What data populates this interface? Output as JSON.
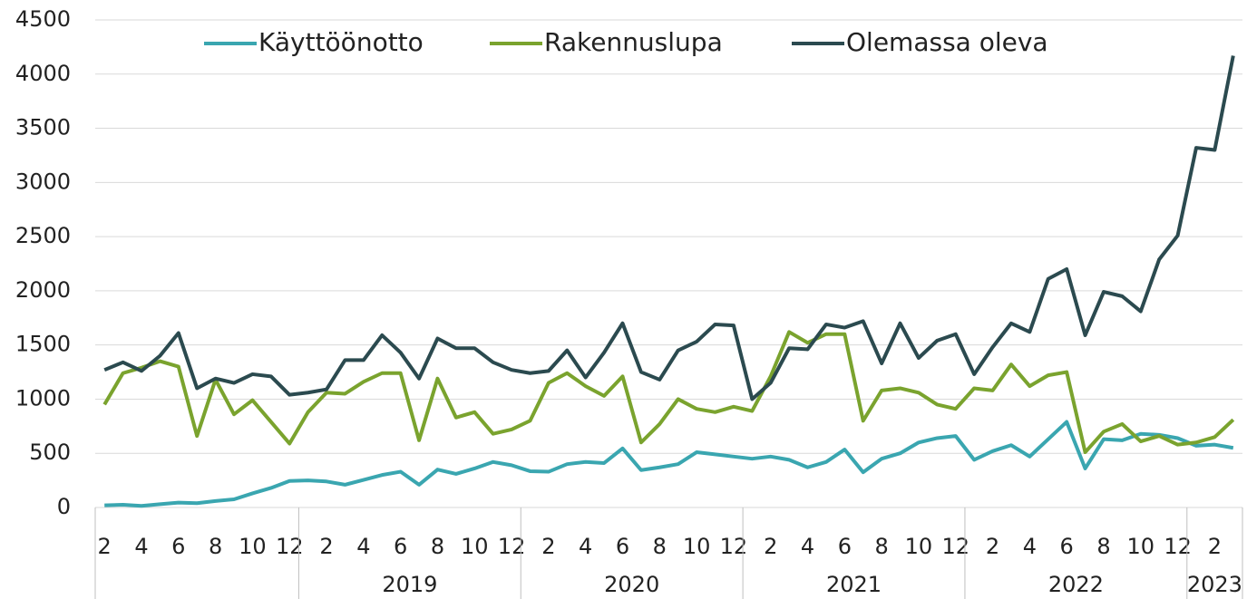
{
  "chart_data": {
    "type": "line",
    "categories": [
      "2",
      null,
      "4",
      null,
      "6",
      null,
      "8",
      null,
      "10",
      null,
      "12",
      null,
      "2",
      null,
      "4",
      null,
      "6",
      null,
      "8",
      null,
      "10",
      null,
      "12",
      null,
      "2",
      null,
      "4",
      null,
      "6",
      null,
      "8",
      null,
      "10",
      null,
      "12",
      null,
      "2",
      null,
      "4",
      null,
      "6",
      null,
      "8",
      null,
      "10",
      null,
      "12",
      null,
      "2",
      null,
      "4",
      null,
      "6",
      null,
      "8",
      null,
      "10",
      null,
      "12",
      null,
      "2",
      null
    ],
    "years": [
      null,
      "2019",
      "2020",
      "2021",
      "2022",
      "2023"
    ],
    "series": [
      {
        "name": "Käyttöönotto",
        "color": "#3aa6b0",
        "values": [
          20,
          25,
          15,
          30,
          45,
          40,
          60,
          75,
          130,
          180,
          245,
          250,
          240,
          210,
          255,
          300,
          330,
          210,
          350,
          310,
          360,
          420,
          390,
          335,
          330,
          400,
          420,
          410,
          545,
          345,
          370,
          400,
          510,
          490,
          470,
          450,
          470,
          440,
          370,
          420,
          535,
          325,
          450,
          500,
          600,
          640,
          660,
          440,
          520,
          575,
          470,
          630,
          790,
          360,
          630,
          620,
          680,
          670,
          640,
          570,
          580,
          550
        ]
      },
      {
        "name": "Rakennuslupa",
        "color": "#7aa32e",
        "values": [
          950,
          1240,
          1290,
          1350,
          1300,
          660,
          1180,
          860,
          990,
          790,
          590,
          880,
          1060,
          1050,
          1160,
          1240,
          1240,
          620,
          1190,
          830,
          880,
          680,
          720,
          800,
          1150,
          1240,
          1120,
          1030,
          1210,
          600,
          770,
          1000,
          910,
          880,
          930,
          890,
          1210,
          1620,
          1520,
          1600,
          1600,
          800,
          1080,
          1100,
          1060,
          950,
          910,
          1100,
          1080,
          1320,
          1120,
          1220,
          1250,
          510,
          700,
          770,
          610,
          660,
          580,
          600,
          650,
          810
        ]
      },
      {
        "name": "Olemassa oleva",
        "color": "#2b4a4f",
        "values": [
          1270,
          1340,
          1260,
          1400,
          1610,
          1100,
          1190,
          1150,
          1230,
          1210,
          1040,
          1060,
          1090,
          1360,
          1360,
          1590,
          1430,
          1190,
          1560,
          1470,
          1470,
          1340,
          1270,
          1240,
          1260,
          1450,
          1200,
          1430,
          1700,
          1250,
          1180,
          1450,
          1530,
          1690,
          1680,
          1000,
          1150,
          1470,
          1460,
          1690,
          1660,
          1720,
          1330,
          1700,
          1380,
          1540,
          1600,
          1230,
          1480,
          1700,
          1620,
          2110,
          2200,
          1590,
          1990,
          1950,
          1810,
          2290,
          2510,
          3320,
          3300,
          4170
        ]
      }
    ],
    "ylim": [
      0,
      4500
    ],
    "yticks": [
      0,
      500,
      1000,
      1500,
      2000,
      2500,
      3000,
      3500,
      4000,
      4500
    ],
    "grid": true,
    "legend": "top"
  }
}
